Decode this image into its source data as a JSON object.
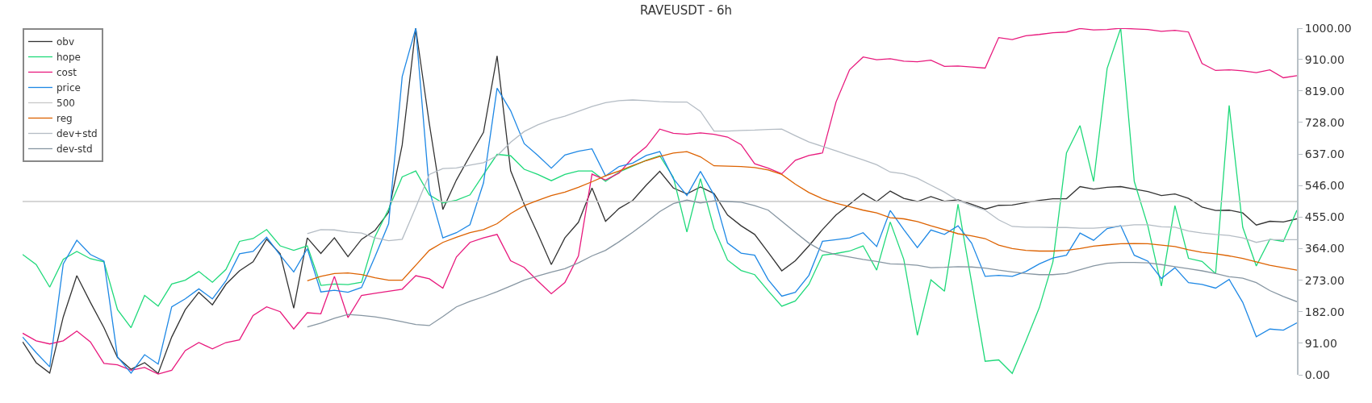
{
  "chart_data": {
    "type": "line",
    "title": "RAVEUSDT - 6h",
    "categories": [
      null,
      null,
      null,
      null,
      null,
      null,
      null,
      null,
      null,
      null,
      null,
      null,
      null,
      null,
      null,
      null,
      null,
      null,
      null,
      null,
      null,
      null,
      null,
      null,
      null,
      null,
      null,
      null,
      null,
      null,
      null,
      null,
      null,
      null,
      null,
      null,
      null,
      null,
      null,
      null,
      null,
      null,
      null,
      null,
      null,
      null,
      null,
      null,
      null,
      null,
      null,
      null,
      null,
      null,
      null,
      null,
      null,
      null,
      null,
      null,
      null,
      null,
      null,
      null,
      null,
      null,
      null,
      null,
      null,
      null,
      null,
      null,
      null,
      null,
      null,
      null,
      null,
      null,
      null,
      null,
      null,
      null,
      null,
      null,
      null,
      null,
      null,
      null,
      null,
      null,
      null,
      null,
      null,
      null,
      null
    ],
    "series": [
      {
        "name": "obv",
        "color": "#333333",
        "values": [
          95,
          35,
          5,
          167,
          286,
          209,
          136,
          50,
          16,
          35,
          4,
          109,
          188,
          238,
          202,
          261,
          300,
          326,
          391,
          349,
          192,
          395,
          350,
          395,
          341,
          391,
          417,
          469,
          663,
          1000,
          725,
          477,
          562,
          632,
          700,
          920,
          589,
          492,
          407,
          318,
          395,
          440,
          539,
          443,
          480,
          503,
          547,
          587,
          539,
          522,
          542,
          523,
          461,
          430,
          405,
          353,
          300,
          329,
          372,
          419,
          461,
          492,
          523,
          500,
          530,
          509,
          500,
          514,
          501,
          505,
          492,
          478,
          489,
          490,
          497,
          503,
          508,
          508,
          543,
          536,
          541,
          543,
          536,
          529,
          517,
          522,
          509,
          484,
          474,
          475,
          467,
          432,
          443,
          441,
          450
        ]
      },
      {
        "name": "hope",
        "color": "#1fd97a",
        "values": [
          347,
          318,
          253,
          333,
          356,
          335,
          326,
          188,
          136,
          229,
          198,
          262,
          273,
          298,
          267,
          304,
          385,
          393,
          419,
          372,
          359,
          372,
          258,
          262,
          260,
          267,
          399,
          478,
          571,
          588,
          519,
          496,
          504,
          519,
          578,
          636,
          632,
          593,
          578,
          560,
          578,
          588,
          588,
          558,
          585,
          602,
          619,
          632,
          570,
          412,
          566,
          422,
          331,
          301,
          289,
          242,
          198,
          213,
          261,
          345,
          350,
          357,
          372,
          302,
          441,
          333,
          114,
          274,
          241,
          492,
          267,
          39,
          43,
          4,
          97,
          194,
          326,
          640,
          719,
          558,
          884,
          1000,
          558,
          430,
          256,
          488,
          336,
          327,
          292,
          777,
          426,
          314,
          391,
          385,
          475
        ]
      },
      {
        "name": "cost",
        "color": "#e8197d",
        "values": [
          120,
          98,
          89,
          98,
          126,
          95,
          33,
          29,
          13,
          21,
          2,
          13,
          70,
          93,
          75,
          93,
          101,
          171,
          196,
          182,
          132,
          179,
          176,
          284,
          165,
          229,
          235,
          241,
          247,
          286,
          277,
          250,
          340,
          382,
          395,
          405,
          329,
          310,
          271,
          234,
          266,
          343,
          579,
          562,
          582,
          626,
          658,
          709,
          697,
          694,
          698,
          694,
          686,
          664,
          609,
          596,
          580,
          619,
          633,
          640,
          787,
          880,
          917,
          909,
          912,
          905,
          903,
          908,
          890,
          891,
          888,
          885,
          973,
          967,
          978,
          982,
          987,
          989,
          999,
          995,
          996,
          1000,
          998,
          996,
          991,
          994,
          989,
          898,
          878,
          880,
          877,
          872,
          880,
          857,
          863
        ]
      },
      {
        "name": "price",
        "color": "#1e88e5",
        "values": [
          109,
          64,
          23,
          320,
          388,
          347,
          328,
          52,
          5,
          58,
          31,
          196,
          219,
          248,
          219,
          271,
          349,
          356,
          397,
          345,
          297,
          364,
          239,
          244,
          238,
          252,
          341,
          436,
          860,
          1000,
          533,
          395,
          410,
          433,
          554,
          827,
          762,
          667,
          633,
          596,
          634,
          645,
          652,
          574,
          601,
          611,
          633,
          644,
          566,
          517,
          587,
          519,
          380,
          351,
          345,
          274,
          227,
          238,
          287,
          385,
          390,
          395,
          410,
          370,
          474,
          419,
          367,
          418,
          405,
          430,
          380,
          284,
          287,
          284,
          298,
          320,
          337,
          345,
          409,
          388,
          422,
          430,
          345,
          328,
          278,
          309,
          266,
          261,
          250,
          275,
          209,
          110,
          132,
          129,
          150
        ]
      },
      {
        "name": "500",
        "color": "#c8c8c8",
        "values": [
          500,
          500,
          500,
          500,
          500,
          500,
          500,
          500,
          500,
          500,
          500,
          500,
          500,
          500,
          500,
          500,
          500,
          500,
          500,
          500,
          500,
          500,
          500,
          500,
          500,
          500,
          500,
          500,
          500,
          500,
          500,
          500,
          500,
          500,
          500,
          500,
          500,
          500,
          500,
          500,
          500,
          500,
          500,
          500,
          500,
          500,
          500,
          500,
          500,
          500,
          500,
          500,
          500,
          500,
          500,
          500,
          500,
          500,
          500,
          500,
          500,
          500,
          500,
          500,
          500,
          500,
          500,
          500,
          500,
          500,
          500,
          500,
          500,
          500,
          500,
          500,
          500,
          500,
          500,
          500,
          500,
          500,
          500,
          500,
          500,
          500,
          500,
          500,
          500,
          500,
          500,
          500,
          500,
          500,
          500
        ]
      },
      {
        "name": "reg",
        "color": "#dd6200",
        "values": [
          null,
          null,
          null,
          null,
          null,
          null,
          null,
          null,
          null,
          null,
          null,
          null,
          null,
          null,
          null,
          null,
          null,
          null,
          null,
          null,
          null,
          271,
          284,
          292,
          294,
          289,
          280,
          273,
          273,
          316,
          359,
          382,
          397,
          410,
          419,
          436,
          465,
          488,
          503,
          517,
          527,
          541,
          557,
          574,
          588,
          604,
          618,
          630,
          640,
          644,
          629,
          603,
          602,
          601,
          598,
          591,
          578,
          550,
          526,
          508,
          495,
          485,
          475,
          467,
          453,
          450,
          442,
          430,
          419,
          407,
          401,
          393,
          374,
          364,
          359,
          357,
          357,
          359,
          364,
          371,
          375,
          378,
          379,
          378,
          374,
          370,
          361,
          353,
          349,
          343,
          336,
          326,
          316,
          309,
          302
        ]
      },
      {
        "name": "dev+std",
        "color": "#b4bcc4",
        "values": [
          null,
          null,
          null,
          null,
          null,
          null,
          null,
          null,
          null,
          null,
          null,
          null,
          null,
          null,
          null,
          null,
          null,
          null,
          null,
          null,
          null,
          407,
          419,
          418,
          412,
          409,
          395,
          387,
          391,
          483,
          578,
          595,
          597,
          605,
          612,
          632,
          671,
          702,
          721,
          736,
          746,
          760,
          774,
          785,
          791,
          793,
          791,
          788,
          787,
          787,
          760,
          703,
          703,
          705,
          706,
          708,
          709,
          690,
          672,
          659,
          646,
          633,
          620,
          606,
          585,
          580,
          567,
          547,
          527,
          503,
          488,
          475,
          447,
          428,
          426,
          426,
          425,
          425,
          423,
          423,
          426,
          429,
          433,
          433,
          427,
          426,
          415,
          409,
          405,
          402,
          395,
          382,
          390,
          390,
          390
        ]
      },
      {
        "name": "dev-std",
        "color": "#8796a2",
        "values": [
          null,
          null,
          null,
          null,
          null,
          null,
          null,
          null,
          null,
          null,
          null,
          null,
          null,
          null,
          null,
          null,
          null,
          null,
          null,
          null,
          null,
          138,
          149,
          163,
          174,
          171,
          167,
          161,
          153,
          145,
          142,
          168,
          196,
          212,
          225,
          240,
          256,
          273,
          285,
          296,
          306,
          323,
          343,
          359,
          384,
          411,
          440,
          471,
          494,
          504,
          496,
          502,
          500,
          498,
          488,
          475,
          443,
          411,
          380,
          357,
          347,
          340,
          333,
          327,
          320,
          319,
          316,
          309,
          310,
          312,
          311,
          308,
          302,
          297,
          292,
          289,
          289,
          292,
          303,
          314,
          322,
          324,
          324,
          323,
          318,
          312,
          306,
          300,
          292,
          283,
          279,
          266,
          243,
          226,
          211
        ]
      }
    ],
    "ylim": [
      0,
      1000
    ],
    "yticks": [
      {
        "value": 0,
        "label": "0.00"
      },
      {
        "value": 91,
        "label": "91.00"
      },
      {
        "value": 182,
        "label": "182.00"
      },
      {
        "value": 273,
        "label": "273.00"
      },
      {
        "value": 364,
        "label": "364.00"
      },
      {
        "value": 455,
        "label": "455.00"
      },
      {
        "value": 546,
        "label": "546.00"
      },
      {
        "value": 637,
        "label": "637.00"
      },
      {
        "value": 728,
        "label": "728.00"
      },
      {
        "value": 819,
        "label": "819.00"
      },
      {
        "value": 910,
        "label": "910.00"
      },
      {
        "value": 1000,
        "label": "1000.00"
      }
    ],
    "legend": "top left",
    "tick_labels": "y",
    "marker": "none",
    "line_style": "solid"
  }
}
